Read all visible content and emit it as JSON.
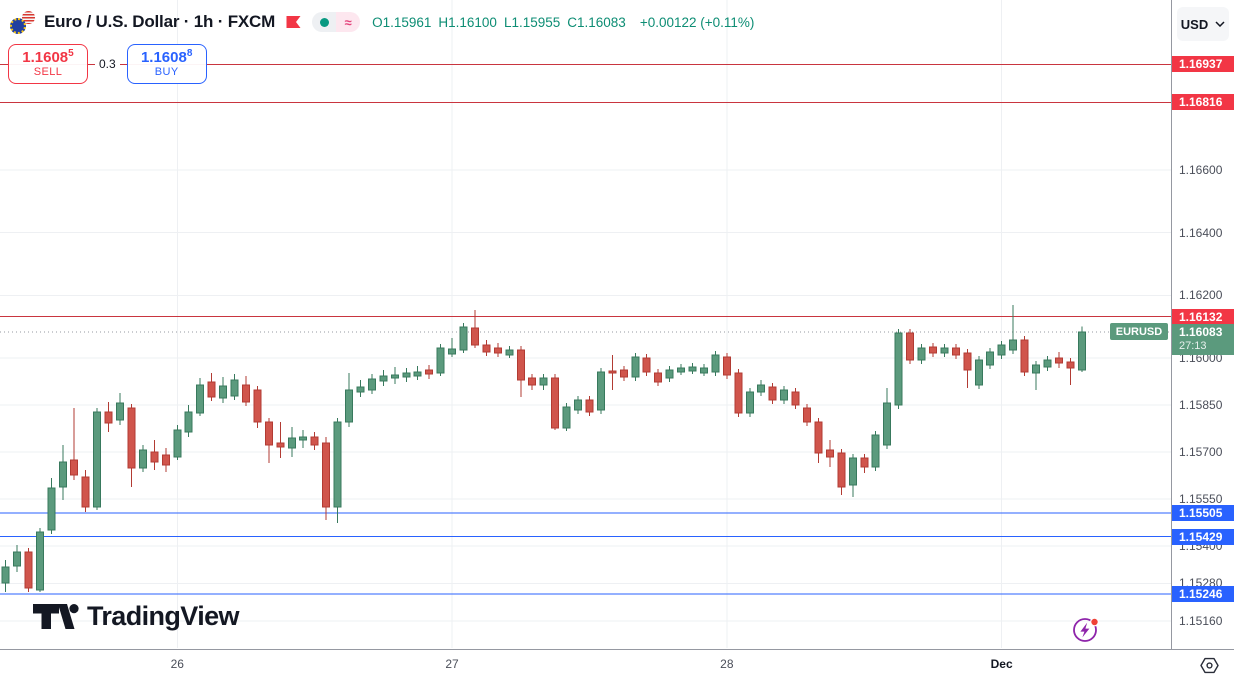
{
  "header": {
    "title_full": "Euro / U.S. Dollar · 1h · FXCM",
    "ohlc": {
      "items": [
        {
          "label": "O",
          "value": "1.15961"
        },
        {
          "label": "H",
          "value": "1.16100"
        },
        {
          "label": "L",
          "value": "1.15955"
        },
        {
          "label": "C",
          "value": "1.16083"
        }
      ],
      "change": "+0.00122 (+0.11%)"
    },
    "status_approx": "≈",
    "currency": "USD"
  },
  "trade_panel": {
    "sell_price_main": "1.1608",
    "sell_price_sup": "5",
    "sell_label": "SELL",
    "spread": "0.3",
    "buy_price_main": "1.1608",
    "buy_price_sup": "8",
    "buy_label": "BUY"
  },
  "watermark": {
    "text": "TradingView"
  },
  "chart_data": {
    "type": "candlestick",
    "symbol": "EURUSD",
    "interval": "1h",
    "exchange": "FXCM",
    "last_label": "EURUSD",
    "last_price": 1.16083,
    "last_price_label": "1.16083",
    "countdown": "27:13",
    "price_ticks": [
      "1.16600",
      "1.16400",
      "1.16200",
      "1.16000",
      "1.15850",
      "1.15700",
      "1.15550",
      "1.15400",
      "1.15280",
      "1.15160"
    ],
    "time_labels": [
      {
        "label": "26",
        "index": 15,
        "bold": false
      },
      {
        "label": "27",
        "index": 39,
        "bold": false
      },
      {
        "label": "28",
        "index": 63,
        "bold": false
      },
      {
        "label": "Dec",
        "index": 87,
        "bold": true
      }
    ],
    "resistance_levels": [
      1.16937,
      1.16816,
      1.16132
    ],
    "support_levels": [
      1.15505,
      1.15429,
      1.15246
    ],
    "colors": {
      "up_fill": "#5b9a7d",
      "up_stroke": "#38795d",
      "down_fill": "#d0554c",
      "down_stroke": "#b23b33",
      "resistance_line": "#c9353f",
      "resistance_label_bg": "#f23645",
      "support_line": "#2962ff",
      "support_label_bg": "#2962ff",
      "last_line": "#9598a1",
      "last_label_bg": "#5b9a7d",
      "grid": "#eef0f3",
      "header_green": "#0d8d74"
    },
    "candles": [
      [
        1.15281,
        1.15355,
        1.15252,
        1.15332
      ],
      [
        1.15336,
        1.15403,
        1.15316,
        1.1538
      ],
      [
        1.1538,
        1.15393,
        1.15252,
        1.15265
      ],
      [
        1.15259,
        1.15457,
        1.15252,
        1.15444
      ],
      [
        1.1545,
        1.15616,
        1.15438,
        1.15585
      ],
      [
        1.15588,
        1.15722,
        1.15546,
        1.15668
      ],
      [
        1.15674,
        1.1584,
        1.1561,
        1.15626
      ],
      [
        1.1562,
        1.15642,
        1.15508,
        1.15524
      ],
      [
        1.15524,
        1.1584,
        1.15514,
        1.15827
      ],
      [
        1.15827,
        1.15859,
        1.15763,
        1.15792
      ],
      [
        1.15802,
        1.15888,
        1.15786,
        1.15856
      ],
      [
        1.1584,
        1.15853,
        1.15588,
        1.15648
      ],
      [
        1.15648,
        1.15722,
        1.15635,
        1.15706
      ],
      [
        1.157,
        1.15738,
        1.15642,
        1.15668
      ],
      [
        1.1569,
        1.15712,
        1.15635,
        1.15658
      ],
      [
        1.15684,
        1.15786,
        1.15674,
        1.1577
      ],
      [
        1.15763,
        1.1585,
        1.15747,
        1.15827
      ],
      [
        1.15824,
        1.15936,
        1.15815,
        1.15913
      ],
      [
        1.15923,
        1.15952,
        1.15862,
        1.15875
      ],
      [
        1.15872,
        1.15939,
        1.15856,
        1.1591
      ],
      [
        1.15878,
        1.15949,
        1.15866,
        1.15929
      ],
      [
        1.15913,
        1.15942,
        1.15846,
        1.15859
      ],
      [
        1.15898,
        1.1591,
        1.15776,
        1.15795
      ],
      [
        1.15795,
        1.15808,
        1.15664,
        1.15722
      ],
      [
        1.15728,
        1.15795,
        1.1568,
        1.15715
      ],
      [
        1.15712,
        1.15779,
        1.15684,
        1.15744
      ],
      [
        1.15738,
        1.1577,
        1.15712,
        1.15747
      ],
      [
        1.15747,
        1.15763,
        1.15706,
        1.15722
      ],
      [
        1.15728,
        1.15747,
        1.15482,
        1.15524
      ],
      [
        1.15524,
        1.15808,
        1.15473,
        1.15795
      ],
      [
        1.15795,
        1.15952,
        1.15779,
        1.15898
      ],
      [
        1.15891,
        1.15929,
        1.15875,
        1.15907
      ],
      [
        1.15898,
        1.15949,
        1.15885,
        1.15933
      ],
      [
        1.15926,
        1.15961,
        1.1591,
        1.15942
      ],
      [
        1.15936,
        1.15971,
        1.15917,
        1.15945
      ],
      [
        1.15939,
        1.15968,
        1.15923,
        1.15952
      ],
      [
        1.15942,
        1.15974,
        1.15929,
        1.15955
      ],
      [
        1.15961,
        1.15977,
        1.15933,
        1.15949
      ],
      [
        1.15952,
        1.16044,
        1.15942,
        1.16032
      ],
      [
        1.16013,
        1.16064,
        1.16003,
        1.16028
      ],
      [
        1.16025,
        1.16111,
        1.16016,
        1.16099
      ],
      [
        1.16096,
        1.16153,
        1.16032,
        1.16041
      ],
      [
        1.16041,
        1.16057,
        1.16006,
        1.16019
      ],
      [
        1.16032,
        1.16048,
        1.16003,
        1.16016
      ],
      [
        1.16009,
        1.16038,
        1.16,
        1.16025
      ],
      [
        1.16025,
        1.16038,
        1.15875,
        1.15929
      ],
      [
        1.15936,
        1.15949,
        1.15898,
        1.15913
      ],
      [
        1.15913,
        1.15949,
        1.15898,
        1.15936
      ],
      [
        1.15936,
        1.15949,
        1.1577,
        1.15776
      ],
      [
        1.15776,
        1.15856,
        1.15767,
        1.15843
      ],
      [
        1.15834,
        1.15878,
        1.15821,
        1.15866
      ],
      [
        1.15866,
        1.15878,
        1.15815,
        1.15827
      ],
      [
        1.15834,
        1.15968,
        1.15821,
        1.15955
      ],
      [
        1.15958,
        1.16009,
        1.15898,
        1.15952
      ],
      [
        1.15961,
        1.15974,
        1.15926,
        1.15939
      ],
      [
        1.15939,
        1.16016,
        1.15926,
        1.16003
      ],
      [
        1.16,
        1.16013,
        1.15942,
        1.15955
      ],
      [
        1.15952,
        1.15965,
        1.1591,
        1.15923
      ],
      [
        1.15936,
        1.15974,
        1.15923,
        1.15961
      ],
      [
        1.15955,
        1.15981,
        1.15945,
        1.15968
      ],
      [
        1.15958,
        1.15984,
        1.15949,
        1.15971
      ],
      [
        1.15952,
        1.15981,
        1.15942,
        1.15968
      ],
      [
        1.15955,
        1.16022,
        1.15942,
        1.16009
      ],
      [
        1.16003,
        1.16016,
        1.15933,
        1.15945
      ],
      [
        1.15952,
        1.15965,
        1.15811,
        1.15824
      ],
      [
        1.15824,
        1.15904,
        1.15811,
        1.15891
      ],
      [
        1.15891,
        1.15929,
        1.15878,
        1.15913
      ],
      [
        1.15907,
        1.1592,
        1.15853,
        1.15866
      ],
      [
        1.15866,
        1.1591,
        1.15853,
        1.15898
      ],
      [
        1.15891,
        1.15904,
        1.15837,
        1.1585
      ],
      [
        1.1584,
        1.15853,
        1.15782,
        1.15795
      ],
      [
        1.15795,
        1.15808,
        1.15664,
        1.15696
      ],
      [
        1.15706,
        1.15738,
        1.15652,
        1.15684
      ],
      [
        1.15696,
        1.15709,
        1.15562,
        1.15588
      ],
      [
        1.15594,
        1.15693,
        1.15556,
        1.1568
      ],
      [
        1.1568,
        1.15693,
        1.15632,
        1.15652
      ],
      [
        1.15652,
        1.15767,
        1.15639,
        1.15754
      ],
      [
        1.15722,
        1.15904,
        1.15709,
        1.15856
      ],
      [
        1.1585,
        1.16092,
        1.15837,
        1.1608
      ],
      [
        1.1608,
        1.16092,
        1.15981,
        1.15993
      ],
      [
        1.15993,
        1.16044,
        1.15981,
        1.16032
      ],
      [
        1.16035,
        1.16048,
        1.16003,
        1.16016
      ],
      [
        1.16016,
        1.16044,
        1.16003,
        1.16032
      ],
      [
        1.16032,
        1.16044,
        1.15997,
        1.16009
      ],
      [
        1.16016,
        1.16028,
        1.15904,
        1.15961
      ],
      [
        1.15913,
        1.16006,
        1.15901,
        1.15993
      ],
      [
        1.15977,
        1.16032,
        1.15965,
        1.16019
      ],
      [
        1.16009,
        1.16054,
        1.15997,
        1.16041
      ],
      [
        1.16025,
        1.16169,
        1.16013,
        1.16057
      ],
      [
        1.16057,
        1.1607,
        1.15942,
        1.15955
      ],
      [
        1.15952,
        1.1599,
        1.15898,
        1.15977
      ],
      [
        1.15971,
        1.16006,
        1.15958,
        1.15993
      ],
      [
        1.16,
        1.16019,
        1.15968,
        1.15984
      ],
      [
        1.15987,
        1.16,
        1.15913,
        1.15968
      ],
      [
        1.15961,
        1.161,
        1.15955,
        1.16083
      ]
    ]
  }
}
